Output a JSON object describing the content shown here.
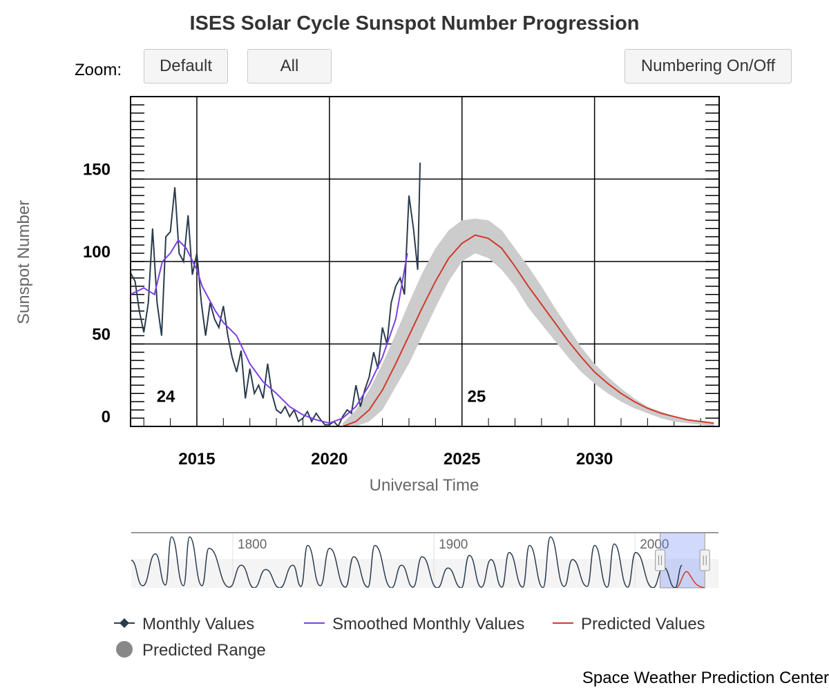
{
  "header": {
    "title": "ISES Solar Cycle Sunspot Number Progression"
  },
  "controls": {
    "zoom_label": "Zoom:",
    "buttons": [
      "Default",
      "All"
    ],
    "numbering_button": "Numbering On/Off"
  },
  "chart_data": {
    "type": "line",
    "xlabel": "Universal Time",
    "ylabel": "Sunspot Number",
    "xlim": [
      2012.5,
      2034.7
    ],
    "ylim": [
      0,
      200
    ],
    "xticks": [
      2015,
      2020,
      2025,
      2030
    ],
    "yticks": [
      0,
      50,
      100,
      150
    ],
    "xminor_interval": 1,
    "yminor_interval": 5,
    "grid": true,
    "series": [
      {
        "name": "Monthly Values",
        "color": "#2a3b4d",
        "marker": "diamond",
        "x": [
          2012.5,
          2012.67,
          2012.83,
          2013,
          2013.17,
          2013.33,
          2013.5,
          2013.67,
          2013.83,
          2014,
          2014.17,
          2014.33,
          2014.5,
          2014.67,
          2014.83,
          2015,
          2015.17,
          2015.33,
          2015.5,
          2015.67,
          2015.83,
          2016,
          2016.17,
          2016.33,
          2016.5,
          2016.67,
          2016.83,
          2017,
          2017.17,
          2017.33,
          2017.5,
          2017.67,
          2017.83,
          2018,
          2018.17,
          2018.33,
          2018.5,
          2018.67,
          2018.83,
          2019,
          2019.17,
          2019.33,
          2019.5,
          2019.67,
          2019.83,
          2020,
          2020.17,
          2020.33,
          2020.5,
          2020.67,
          2020.83,
          2021,
          2021.17,
          2021.33,
          2021.5,
          2021.67,
          2021.83,
          2022,
          2022.17,
          2022.33,
          2022.5,
          2022.67,
          2022.83,
          2023,
          2023.17,
          2023.33,
          2023.42
        ],
        "values": [
          93,
          88,
          70,
          57,
          75,
          120,
          75,
          55,
          115,
          118,
          145,
          105,
          100,
          128,
          92,
          105,
          75,
          55,
          75,
          65,
          60,
          73,
          55,
          42,
          33,
          46,
          17,
          35,
          20,
          25,
          17,
          38,
          20,
          10,
          8,
          12,
          6,
          10,
          3,
          5,
          9,
          3,
          8,
          4,
          1,
          1,
          3,
          0,
          6,
          10,
          8,
          25,
          12,
          22,
          30,
          45,
          35,
          60,
          50,
          75,
          85,
          90,
          80,
          140,
          120,
          95,
          160
        ]
      },
      {
        "name": "Smoothed Monthly Values",
        "color": "#7b3fe4",
        "x": [
          2012.5,
          2013,
          2013.4,
          2013.7,
          2014,
          2014.3,
          2014.6,
          2015,
          2015.2,
          2015.7,
          2016,
          2016.5,
          2017,
          2017.5,
          2018,
          2018.5,
          2019,
          2019.5,
          2020,
          2020.5,
          2021,
          2021.5,
          2022,
          2022.5,
          2022.94
        ],
        "values": [
          80,
          84,
          80,
          100,
          105,
          113,
          108,
          95,
          85,
          70,
          63,
          55,
          38,
          27,
          20,
          12,
          7,
          4,
          2,
          5,
          12,
          25,
          42,
          65,
          105
        ]
      },
      {
        "name": "Predicted Values",
        "color": "#d0392b",
        "x": [
          2020.5,
          2021,
          2021.5,
          2022,
          2022.5,
          2023,
          2023.5,
          2024,
          2024.5,
          2025,
          2025.5,
          2026,
          2026.5,
          2027,
          2027.5,
          2028,
          2028.5,
          2029,
          2029.5,
          2030,
          2030.5,
          2031,
          2031.5,
          2032,
          2032.5,
          2033,
          2033.5,
          2034,
          2034.5
        ],
        "values": [
          0,
          3,
          10,
          22,
          38,
          55,
          72,
          88,
          102,
          111,
          116,
          114,
          108,
          97,
          85,
          74,
          63,
          52,
          42,
          33,
          26,
          20,
          15,
          11,
          8,
          6,
          4,
          3,
          2
        ]
      },
      {
        "name": "Predicted Range",
        "type": "area",
        "color": "#cccccc",
        "legend_color": "#888888",
        "x": [
          2020.5,
          2021,
          2021.5,
          2022,
          2022.5,
          2023,
          2023.5,
          2024,
          2024.5,
          2025,
          2025.5,
          2026,
          2026.5,
          2027,
          2027.5,
          2028,
          2028.5,
          2029,
          2029.5,
          2030,
          2030.5,
          2031,
          2031.5,
          2032,
          2032.5,
          2033,
          2033.5,
          2034,
          2034.5
        ],
        "high": [
          2,
          10,
          22,
          38,
          56,
          75,
          93,
          108,
          119,
          125,
          126,
          125,
          119,
          108,
          97,
          85,
          72,
          60,
          48,
          38,
          30,
          23,
          17,
          12,
          9,
          6,
          4,
          3,
          2
        ],
        "low": [
          0,
          0,
          3,
          10,
          24,
          38,
          55,
          72,
          88,
          100,
          105,
          102,
          95,
          85,
          72,
          62,
          52,
          42,
          33,
          26,
          20,
          15,
          11,
          8,
          5,
          3,
          2,
          1,
          0
        ]
      }
    ],
    "annotations": [
      {
        "text": "24",
        "x": 2013.83,
        "y": 14
      },
      {
        "text": "25",
        "x": 2025.55,
        "y": 14
      }
    ],
    "navigator": {
      "xlim": [
        1749.5,
        2041.5
      ],
      "ylim": [
        0,
        390
      ],
      "xticks": [
        1800,
        1900,
        2000
      ],
      "color": "#2a3b4d",
      "x": [
        1749.5,
        1755.2,
        1761.5,
        1766.5,
        1769.5,
        1775.5,
        1778.5,
        1784.7,
        1788.1,
        1798.3,
        1804.2,
        1810.6,
        1816.4,
        1823.3,
        1829.9,
        1833.9,
        1837.2,
        1843.5,
        1848.1,
        1856,
        1860.1,
        1867.2,
        1870.6,
        1878.9,
        1883.9,
        1889.6,
        1894.1,
        1901.7,
        1907,
        1913.6,
        1917.6,
        1923.6,
        1928.4,
        1933.8,
        1937.4,
        1944.2,
        1947.5,
        1954.3,
        1957.9,
        1964.8,
        1968.9,
        1976.2,
        1979.9,
        1986.2,
        1989.6,
        1996.4,
        2000.3,
        2008.9,
        2014.2,
        2019.9,
        2023.4
      ],
      "values": [
        195,
        15,
        240,
        20,
        360,
        15,
        360,
        15,
        280,
        5,
        160,
        0,
        130,
        0,
        160,
        10,
        300,
        15,
        280,
        5,
        220,
        5,
        300,
        0,
        160,
        5,
        220,
        0,
        140,
        0,
        230,
        5,
        200,
        5,
        250,
        5,
        300,
        2,
        360,
        10,
        200,
        10,
        300,
        5,
        310,
        5,
        250,
        1,
        145,
        1,
        160
      ]
    }
  },
  "footer": {
    "credit": "Space Weather Prediction Center"
  }
}
